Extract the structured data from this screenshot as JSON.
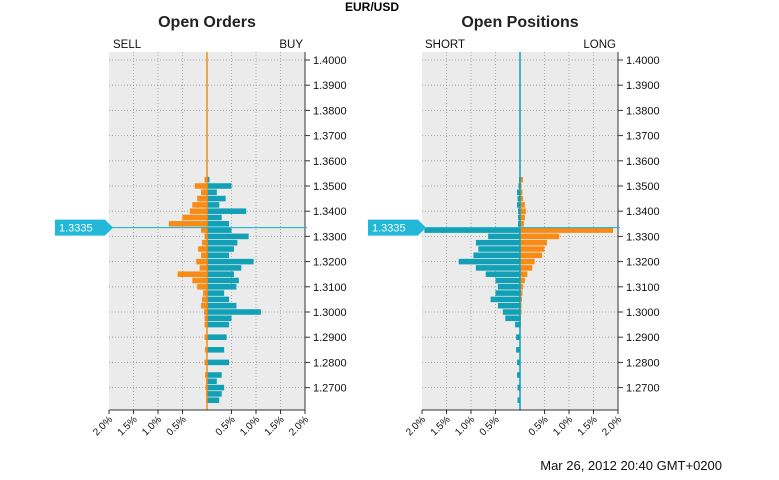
{
  "title": "EUR/USD",
  "timestamp": "Mar 26, 2012 20:40 GMT+0200",
  "current_price": "1.3335",
  "colors": {
    "buy": "#f88b16",
    "sell": "#11a0b5",
    "panel_bg": "#ebebeb",
    "price_line": "#22b8d8"
  },
  "y_ticks": [
    "1.4000",
    "1.3900",
    "1.3800",
    "1.3700",
    "1.3600",
    "1.3500",
    "1.3400",
    "1.3300",
    "1.3200",
    "1.3100",
    "1.3000",
    "1.2900",
    "1.2800",
    "1.2700"
  ],
  "x_ticks": [
    "2.0%",
    "1.5%",
    "1.0%",
    "0.5%",
    "0.5%",
    "1.0%",
    "1.5%",
    "2.0%"
  ],
  "panels": [
    {
      "title": "Open Orders",
      "left_label": "SELL",
      "right_label": "BUY"
    },
    {
      "title": "Open Positions",
      "left_label": "SHORT",
      "right_label": "LONG"
    }
  ],
  "chart_data": [
    {
      "type": "bar",
      "title": "Open Orders",
      "orientation": "horizontal-diverging",
      "ylim": [
        1.262,
        1.4025
      ],
      "xlim": [
        -2.0,
        2.0
      ],
      "current_price": 1.3335,
      "series": [
        {
          "name": "SELL",
          "y": [
            1.3525,
            1.35,
            1.3475,
            1.345,
            1.3425,
            1.34,
            1.3375,
            1.335,
            1.3325,
            1.33,
            1.3275,
            1.325,
            1.3225,
            1.32,
            1.3175,
            1.315,
            1.3125,
            1.31,
            1.3075,
            1.305,
            1.3025,
            1.3,
            1.2975,
            1.295,
            1.29,
            1.285,
            1.28,
            1.275,
            1.2725,
            1.27,
            1.2675,
            1.265
          ],
          "values": [
            0.05,
            0.25,
            0.12,
            0.2,
            0.3,
            0.35,
            0.5,
            0.78,
            0.12,
            0.05,
            0.1,
            0.18,
            0.12,
            0.22,
            0.15,
            0.6,
            0.3,
            0.2,
            0.08,
            0.1,
            0.12,
            0.06,
            0.05,
            0.05,
            0.05,
            0.04,
            0.05,
            0.04,
            0.02,
            0.03,
            0.02,
            0.02
          ]
        },
        {
          "name": "BUY",
          "y": [
            1.3525,
            1.35,
            1.3475,
            1.345,
            1.3425,
            1.34,
            1.3375,
            1.335,
            1.3325,
            1.33,
            1.3275,
            1.325,
            1.3225,
            1.32,
            1.3175,
            1.315,
            1.3125,
            1.31,
            1.3075,
            1.305,
            1.3025,
            1.3,
            1.2975,
            1.295,
            1.29,
            1.285,
            1.28,
            1.275,
            1.2725,
            1.27,
            1.2675,
            1.265
          ],
          "values": [
            0.05,
            0.5,
            0.2,
            0.38,
            0.25,
            0.8,
            0.3,
            0.45,
            0.5,
            0.85,
            0.62,
            0.55,
            0.45,
            0.95,
            0.7,
            0.55,
            0.65,
            0.6,
            0.35,
            0.45,
            0.6,
            1.1,
            0.5,
            0.45,
            0.4,
            0.35,
            0.45,
            0.3,
            0.2,
            0.35,
            0.3,
            0.25
          ]
        }
      ]
    },
    {
      "type": "bar",
      "title": "Open Positions",
      "orientation": "horizontal-diverging",
      "ylim": [
        1.262,
        1.4025
      ],
      "xlim": [
        -2.0,
        2.0
      ],
      "current_price": 1.3335,
      "series": [
        {
          "name": "SHORT",
          "y": [
            1.3525,
            1.35,
            1.3475,
            1.345,
            1.3425,
            1.34,
            1.3375,
            1.335,
            1.3325,
            1.33,
            1.3275,
            1.325,
            1.3225,
            1.32,
            1.3175,
            1.315,
            1.3125,
            1.31,
            1.3075,
            1.305,
            1.3025,
            1.3,
            1.2975,
            1.295,
            1.29,
            1.285,
            1.28,
            1.275,
            1.27,
            1.265
          ],
          "values": [
            0.02,
            0.03,
            0.06,
            0.05,
            0.06,
            0.04,
            0.04,
            0.04,
            1.95,
            0.65,
            0.9,
            0.85,
            0.95,
            1.25,
            0.9,
            0.7,
            0.5,
            0.45,
            0.5,
            0.6,
            0.45,
            0.35,
            0.3,
            0.1,
            0.08,
            0.08,
            0.06,
            0.06,
            0.05,
            0.05
          ]
        },
        {
          "name": "LONG",
          "y": [
            1.3525,
            1.35,
            1.3475,
            1.345,
            1.3425,
            1.34,
            1.3375,
            1.335,
            1.3325,
            1.33,
            1.3275,
            1.325,
            1.3225,
            1.32,
            1.3175,
            1.315,
            1.3125,
            1.31,
            1.3075,
            1.305,
            1.3025,
            1.3,
            1.2975,
            1.295,
            1.29,
            1.285,
            1.28,
            1.275,
            1.27,
            1.265
          ],
          "values": [
            0.06,
            0.03,
            0.05,
            0.06,
            0.1,
            0.12,
            0.1,
            0.08,
            1.9,
            0.8,
            0.55,
            0.5,
            0.45,
            0.3,
            0.25,
            0.15,
            0.1,
            0.06,
            0.05,
            0.04,
            0.03,
            0.03,
            0.02,
            0.02,
            0.01,
            0.01,
            0.01,
            0.01,
            0.0,
            0.0
          ]
        }
      ]
    }
  ]
}
